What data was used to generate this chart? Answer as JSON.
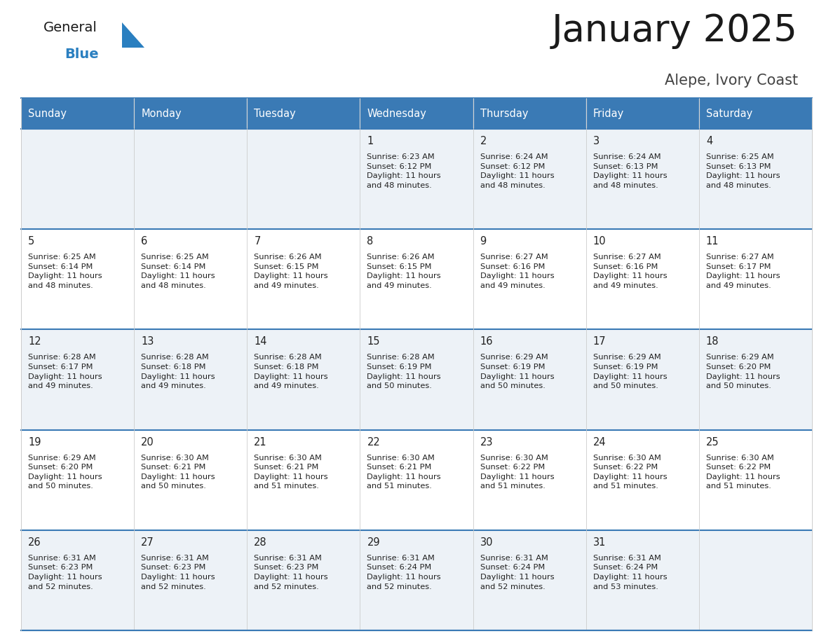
{
  "title": "January 2025",
  "subtitle": "Alepe, Ivory Coast",
  "header_bg": "#3a7ab5",
  "header_text": "#ffffff",
  "days_of_week": [
    "Sunday",
    "Monday",
    "Tuesday",
    "Wednesday",
    "Thursday",
    "Friday",
    "Saturday"
  ],
  "row_bg_odd": "#edf2f7",
  "row_bg_even": "#ffffff",
  "cell_border_color": "#3a7ab5",
  "day_num_color": "#222222",
  "info_color": "#222222",
  "calendar": [
    [
      {
        "day": "",
        "info": ""
      },
      {
        "day": "",
        "info": ""
      },
      {
        "day": "",
        "info": ""
      },
      {
        "day": "1",
        "info": "Sunrise: 6:23 AM\nSunset: 6:12 PM\nDaylight: 11 hours\nand 48 minutes."
      },
      {
        "day": "2",
        "info": "Sunrise: 6:24 AM\nSunset: 6:12 PM\nDaylight: 11 hours\nand 48 minutes."
      },
      {
        "day": "3",
        "info": "Sunrise: 6:24 AM\nSunset: 6:13 PM\nDaylight: 11 hours\nand 48 minutes."
      },
      {
        "day": "4",
        "info": "Sunrise: 6:25 AM\nSunset: 6:13 PM\nDaylight: 11 hours\nand 48 minutes."
      }
    ],
    [
      {
        "day": "5",
        "info": "Sunrise: 6:25 AM\nSunset: 6:14 PM\nDaylight: 11 hours\nand 48 minutes."
      },
      {
        "day": "6",
        "info": "Sunrise: 6:25 AM\nSunset: 6:14 PM\nDaylight: 11 hours\nand 48 minutes."
      },
      {
        "day": "7",
        "info": "Sunrise: 6:26 AM\nSunset: 6:15 PM\nDaylight: 11 hours\nand 49 minutes."
      },
      {
        "day": "8",
        "info": "Sunrise: 6:26 AM\nSunset: 6:15 PM\nDaylight: 11 hours\nand 49 minutes."
      },
      {
        "day": "9",
        "info": "Sunrise: 6:27 AM\nSunset: 6:16 PM\nDaylight: 11 hours\nand 49 minutes."
      },
      {
        "day": "10",
        "info": "Sunrise: 6:27 AM\nSunset: 6:16 PM\nDaylight: 11 hours\nand 49 minutes."
      },
      {
        "day": "11",
        "info": "Sunrise: 6:27 AM\nSunset: 6:17 PM\nDaylight: 11 hours\nand 49 minutes."
      }
    ],
    [
      {
        "day": "12",
        "info": "Sunrise: 6:28 AM\nSunset: 6:17 PM\nDaylight: 11 hours\nand 49 minutes."
      },
      {
        "day": "13",
        "info": "Sunrise: 6:28 AM\nSunset: 6:18 PM\nDaylight: 11 hours\nand 49 minutes."
      },
      {
        "day": "14",
        "info": "Sunrise: 6:28 AM\nSunset: 6:18 PM\nDaylight: 11 hours\nand 49 minutes."
      },
      {
        "day": "15",
        "info": "Sunrise: 6:28 AM\nSunset: 6:19 PM\nDaylight: 11 hours\nand 50 minutes."
      },
      {
        "day": "16",
        "info": "Sunrise: 6:29 AM\nSunset: 6:19 PM\nDaylight: 11 hours\nand 50 minutes."
      },
      {
        "day": "17",
        "info": "Sunrise: 6:29 AM\nSunset: 6:19 PM\nDaylight: 11 hours\nand 50 minutes."
      },
      {
        "day": "18",
        "info": "Sunrise: 6:29 AM\nSunset: 6:20 PM\nDaylight: 11 hours\nand 50 minutes."
      }
    ],
    [
      {
        "day": "19",
        "info": "Sunrise: 6:29 AM\nSunset: 6:20 PM\nDaylight: 11 hours\nand 50 minutes."
      },
      {
        "day": "20",
        "info": "Sunrise: 6:30 AM\nSunset: 6:21 PM\nDaylight: 11 hours\nand 50 minutes."
      },
      {
        "day": "21",
        "info": "Sunrise: 6:30 AM\nSunset: 6:21 PM\nDaylight: 11 hours\nand 51 minutes."
      },
      {
        "day": "22",
        "info": "Sunrise: 6:30 AM\nSunset: 6:21 PM\nDaylight: 11 hours\nand 51 minutes."
      },
      {
        "day": "23",
        "info": "Sunrise: 6:30 AM\nSunset: 6:22 PM\nDaylight: 11 hours\nand 51 minutes."
      },
      {
        "day": "24",
        "info": "Sunrise: 6:30 AM\nSunset: 6:22 PM\nDaylight: 11 hours\nand 51 minutes."
      },
      {
        "day": "25",
        "info": "Sunrise: 6:30 AM\nSunset: 6:22 PM\nDaylight: 11 hours\nand 51 minutes."
      }
    ],
    [
      {
        "day": "26",
        "info": "Sunrise: 6:31 AM\nSunset: 6:23 PM\nDaylight: 11 hours\nand 52 minutes."
      },
      {
        "day": "27",
        "info": "Sunrise: 6:31 AM\nSunset: 6:23 PM\nDaylight: 11 hours\nand 52 minutes."
      },
      {
        "day": "28",
        "info": "Sunrise: 6:31 AM\nSunset: 6:23 PM\nDaylight: 11 hours\nand 52 minutes."
      },
      {
        "day": "29",
        "info": "Sunrise: 6:31 AM\nSunset: 6:24 PM\nDaylight: 11 hours\nand 52 minutes."
      },
      {
        "day": "30",
        "info": "Sunrise: 6:31 AM\nSunset: 6:24 PM\nDaylight: 11 hours\nand 52 minutes."
      },
      {
        "day": "31",
        "info": "Sunrise: 6:31 AM\nSunset: 6:24 PM\nDaylight: 11 hours\nand 53 minutes."
      },
      {
        "day": "",
        "info": ""
      }
    ]
  ],
  "logo_general_color": "#1a1a1a",
  "logo_blue_color": "#2a7fc0",
  "logo_triangle_color": "#2a7fc0"
}
